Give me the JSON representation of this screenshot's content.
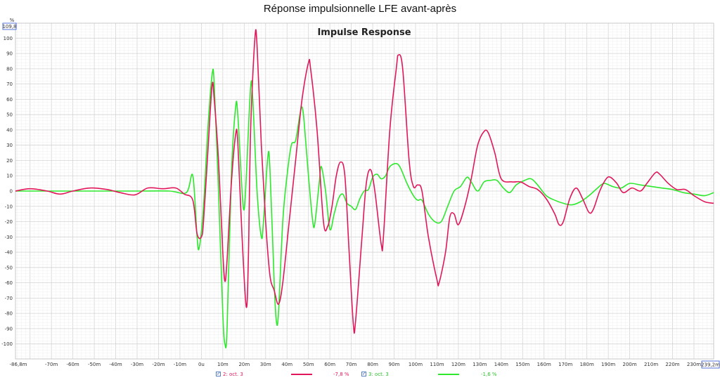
{
  "page": {
    "title": "Réponse impulsionnelle LFE avant-après"
  },
  "chart_data": {
    "type": "line",
    "title": "Impulse Response",
    "y_unit": "%",
    "x_unit": "ms",
    "xlim": [
      -86.8,
      239.2
    ],
    "ylim": [
      -109.8,
      109.8
    ],
    "x_min_label": "-86,8m",
    "x_max_label": "239,2m",
    "y_max_label": "109,8",
    "x_ticks": [
      -70,
      -60,
      -50,
      -40,
      -30,
      -20,
      -10,
      0,
      10,
      20,
      30,
      40,
      50,
      60,
      70,
      80,
      90,
      100,
      110,
      120,
      130,
      140,
      150,
      160,
      170,
      180,
      190,
      200,
      210,
      220,
      230
    ],
    "x_tick_labels": [
      "-70m",
      "-60m",
      "-50m",
      "-40m",
      "-30m",
      "-20m",
      "-10m",
      "0u",
      "10m",
      "20m",
      "30m",
      "40m",
      "50m",
      "60m",
      "70m",
      "80m",
      "90m",
      "100m",
      "110m",
      "120m",
      "130m",
      "140m",
      "150m",
      "160m",
      "170m",
      "180m",
      "190m",
      "200m",
      "210m",
      "220m",
      "230m"
    ],
    "y_ticks": [
      100,
      90,
      80,
      70,
      60,
      50,
      40,
      30,
      20,
      10,
      0,
      -10,
      -20,
      -30,
      -40,
      -50,
      -60,
      -70,
      -80,
      -90,
      -100
    ],
    "grid": true,
    "legend_position": "bottom",
    "series": [
      {
        "name": "2: oct. 3",
        "value_label": "-7,8 %",
        "color": "#e0185a",
        "checked": true,
        "points": [
          [
            -86.8,
            0
          ],
          [
            -80,
            1.5
          ],
          [
            -72,
            0
          ],
          [
            -66,
            -2
          ],
          [
            -60,
            0
          ],
          [
            -52,
            2
          ],
          [
            -44,
            1
          ],
          [
            -38,
            -1
          ],
          [
            -31,
            -2.5
          ],
          [
            -25,
            2
          ],
          [
            -18,
            1.5
          ],
          [
            -12,
            2
          ],
          [
            -8,
            -2
          ],
          [
            -4,
            -6
          ],
          [
            -2,
            -28
          ],
          [
            0,
            -30
          ],
          [
            1,
            -20
          ],
          [
            3,
            25
          ],
          [
            5,
            69
          ],
          [
            6,
            60
          ],
          [
            8,
            20
          ],
          [
            10,
            -40
          ],
          [
            11,
            -59
          ],
          [
            12,
            -45
          ],
          [
            14,
            5
          ],
          [
            16,
            37
          ],
          [
            17,
            32
          ],
          [
            19,
            -30
          ],
          [
            21,
            -76
          ],
          [
            22,
            -40
          ],
          [
            23,
            40
          ],
          [
            25,
            100
          ],
          [
            26,
            95
          ],
          [
            28,
            30
          ],
          [
            30,
            -20
          ],
          [
            32,
            -55
          ],
          [
            34,
            -65
          ],
          [
            36,
            -74
          ],
          [
            38,
            -60
          ],
          [
            41,
            -20
          ],
          [
            44,
            20
          ],
          [
            47,
            60
          ],
          [
            50,
            84
          ],
          [
            51,
            80
          ],
          [
            54,
            40
          ],
          [
            57,
            -20
          ],
          [
            59,
            -23
          ],
          [
            61,
            -10
          ],
          [
            63,
            10
          ],
          [
            65,
            19
          ],
          [
            67,
            10
          ],
          [
            69,
            -40
          ],
          [
            71,
            -88
          ],
          [
            72,
            -85
          ],
          [
            75,
            -30
          ],
          [
            77,
            5
          ],
          [
            79,
            14
          ],
          [
            81,
            0
          ],
          [
            84,
            -35
          ],
          [
            85,
            -30
          ],
          [
            88,
            40
          ],
          [
            91,
            80
          ],
          [
            92,
            89
          ],
          [
            94,
            80
          ],
          [
            97,
            20
          ],
          [
            99,
            3
          ],
          [
            101,
            4
          ],
          [
            103,
            0
          ],
          [
            106,
            -30
          ],
          [
            110,
            -58
          ],
          [
            111,
            -60
          ],
          [
            114,
            -40
          ],
          [
            116,
            -17
          ],
          [
            118,
            -15
          ],
          [
            120,
            -22
          ],
          [
            123,
            -10
          ],
          [
            126,
            8
          ],
          [
            129,
            30
          ],
          [
            132,
            39
          ],
          [
            134,
            38
          ],
          [
            137,
            25
          ],
          [
            140,
            8
          ],
          [
            145,
            6
          ],
          [
            149,
            6
          ],
          [
            153,
            3
          ],
          [
            157,
            1
          ],
          [
            161,
            -5
          ],
          [
            165,
            -15
          ],
          [
            167,
            -22
          ],
          [
            169,
            -20
          ],
          [
            172,
            -5
          ],
          [
            175,
            2
          ],
          [
            178,
            -5
          ],
          [
            181,
            -14
          ],
          [
            183,
            -12
          ],
          [
            186,
            0
          ],
          [
            189,
            8
          ],
          [
            191,
            9
          ],
          [
            194,
            5
          ],
          [
            197,
            -1
          ],
          [
            201,
            2
          ],
          [
            205,
            0
          ],
          [
            208,
            5
          ],
          [
            212,
            12
          ],
          [
            214,
            11
          ],
          [
            218,
            5
          ],
          [
            222,
            1
          ],
          [
            226,
            1
          ],
          [
            230,
            -3
          ],
          [
            235,
            -7
          ],
          [
            239.2,
            -8
          ]
        ]
      },
      {
        "name": "3: oct. 3",
        "value_label": "-1,6 %",
        "color": "#2ee82e",
        "checked": true,
        "points": [
          [
            -86.8,
            0
          ],
          [
            -70,
            0
          ],
          [
            -50,
            0
          ],
          [
            -30,
            0
          ],
          [
            -15,
            0
          ],
          [
            -7,
            -1
          ],
          [
            -4,
            10
          ],
          [
            -2,
            -30
          ],
          [
            -1,
            -37
          ],
          [
            1,
            -10
          ],
          [
            3,
            40
          ],
          [
            5,
            76
          ],
          [
            6,
            70
          ],
          [
            8,
            0
          ],
          [
            10,
            -80
          ],
          [
            11,
            -100
          ],
          [
            12,
            -90
          ],
          [
            14,
            10
          ],
          [
            16,
            55
          ],
          [
            17,
            50
          ],
          [
            19,
            0
          ],
          [
            20,
            -12
          ],
          [
            21,
            10
          ],
          [
            23,
            68
          ],
          [
            24,
            60
          ],
          [
            26,
            0
          ],
          [
            28,
            -30
          ],
          [
            29,
            -20
          ],
          [
            31,
            22
          ],
          [
            32,
            15
          ],
          [
            34,
            -60
          ],
          [
            35,
            -85
          ],
          [
            36,
            -80
          ],
          [
            38,
            -20
          ],
          [
            40,
            10
          ],
          [
            42,
            30
          ],
          [
            44,
            33
          ],
          [
            46,
            50
          ],
          [
            47,
            55
          ],
          [
            48,
            45
          ],
          [
            50,
            10
          ],
          [
            52,
            -20
          ],
          [
            53,
            -21
          ],
          [
            55,
            5
          ],
          [
            56,
            16
          ],
          [
            58,
            0
          ],
          [
            60,
            -25
          ],
          [
            62,
            -15
          ],
          [
            64,
            -5
          ],
          [
            66,
            -2
          ],
          [
            68,
            -8
          ],
          [
            70,
            -10
          ],
          [
            72,
            -12
          ],
          [
            74,
            -5
          ],
          [
            76,
            0
          ],
          [
            78,
            1
          ],
          [
            80,
            9
          ],
          [
            82,
            11
          ],
          [
            84,
            8
          ],
          [
            86,
            10
          ],
          [
            88,
            16
          ],
          [
            91,
            18
          ],
          [
            93,
            15
          ],
          [
            96,
            5
          ],
          [
            99,
            -3
          ],
          [
            101,
            -6
          ],
          [
            103,
            -6
          ],
          [
            106,
            -15
          ],
          [
            109,
            -20
          ],
          [
            112,
            -20
          ],
          [
            115,
            -10
          ],
          [
            118,
            0
          ],
          [
            121,
            3
          ],
          [
            124,
            9
          ],
          [
            126,
            6
          ],
          [
            129,
            0
          ],
          [
            132,
            6
          ],
          [
            135,
            7
          ],
          [
            138,
            7
          ],
          [
            141,
            2
          ],
          [
            144,
            -1
          ],
          [
            147,
            4
          ],
          [
            151,
            7
          ],
          [
            154,
            8
          ],
          [
            157,
            4
          ],
          [
            161,
            -3
          ],
          [
            165,
            -6
          ],
          [
            169,
            -8
          ],
          [
            173,
            -9
          ],
          [
            177,
            -7
          ],
          [
            181,
            -3
          ],
          [
            185,
            2
          ],
          [
            188,
            5
          ],
          [
            192,
            3
          ],
          [
            196,
            2
          ],
          [
            200,
            5
          ],
          [
            205,
            4
          ],
          [
            210,
            3
          ],
          [
            215,
            2
          ],
          [
            220,
            1
          ],
          [
            225,
            -1
          ],
          [
            230,
            -2
          ],
          [
            235,
            -3
          ],
          [
            239.2,
            -1
          ]
        ]
      }
    ]
  }
}
